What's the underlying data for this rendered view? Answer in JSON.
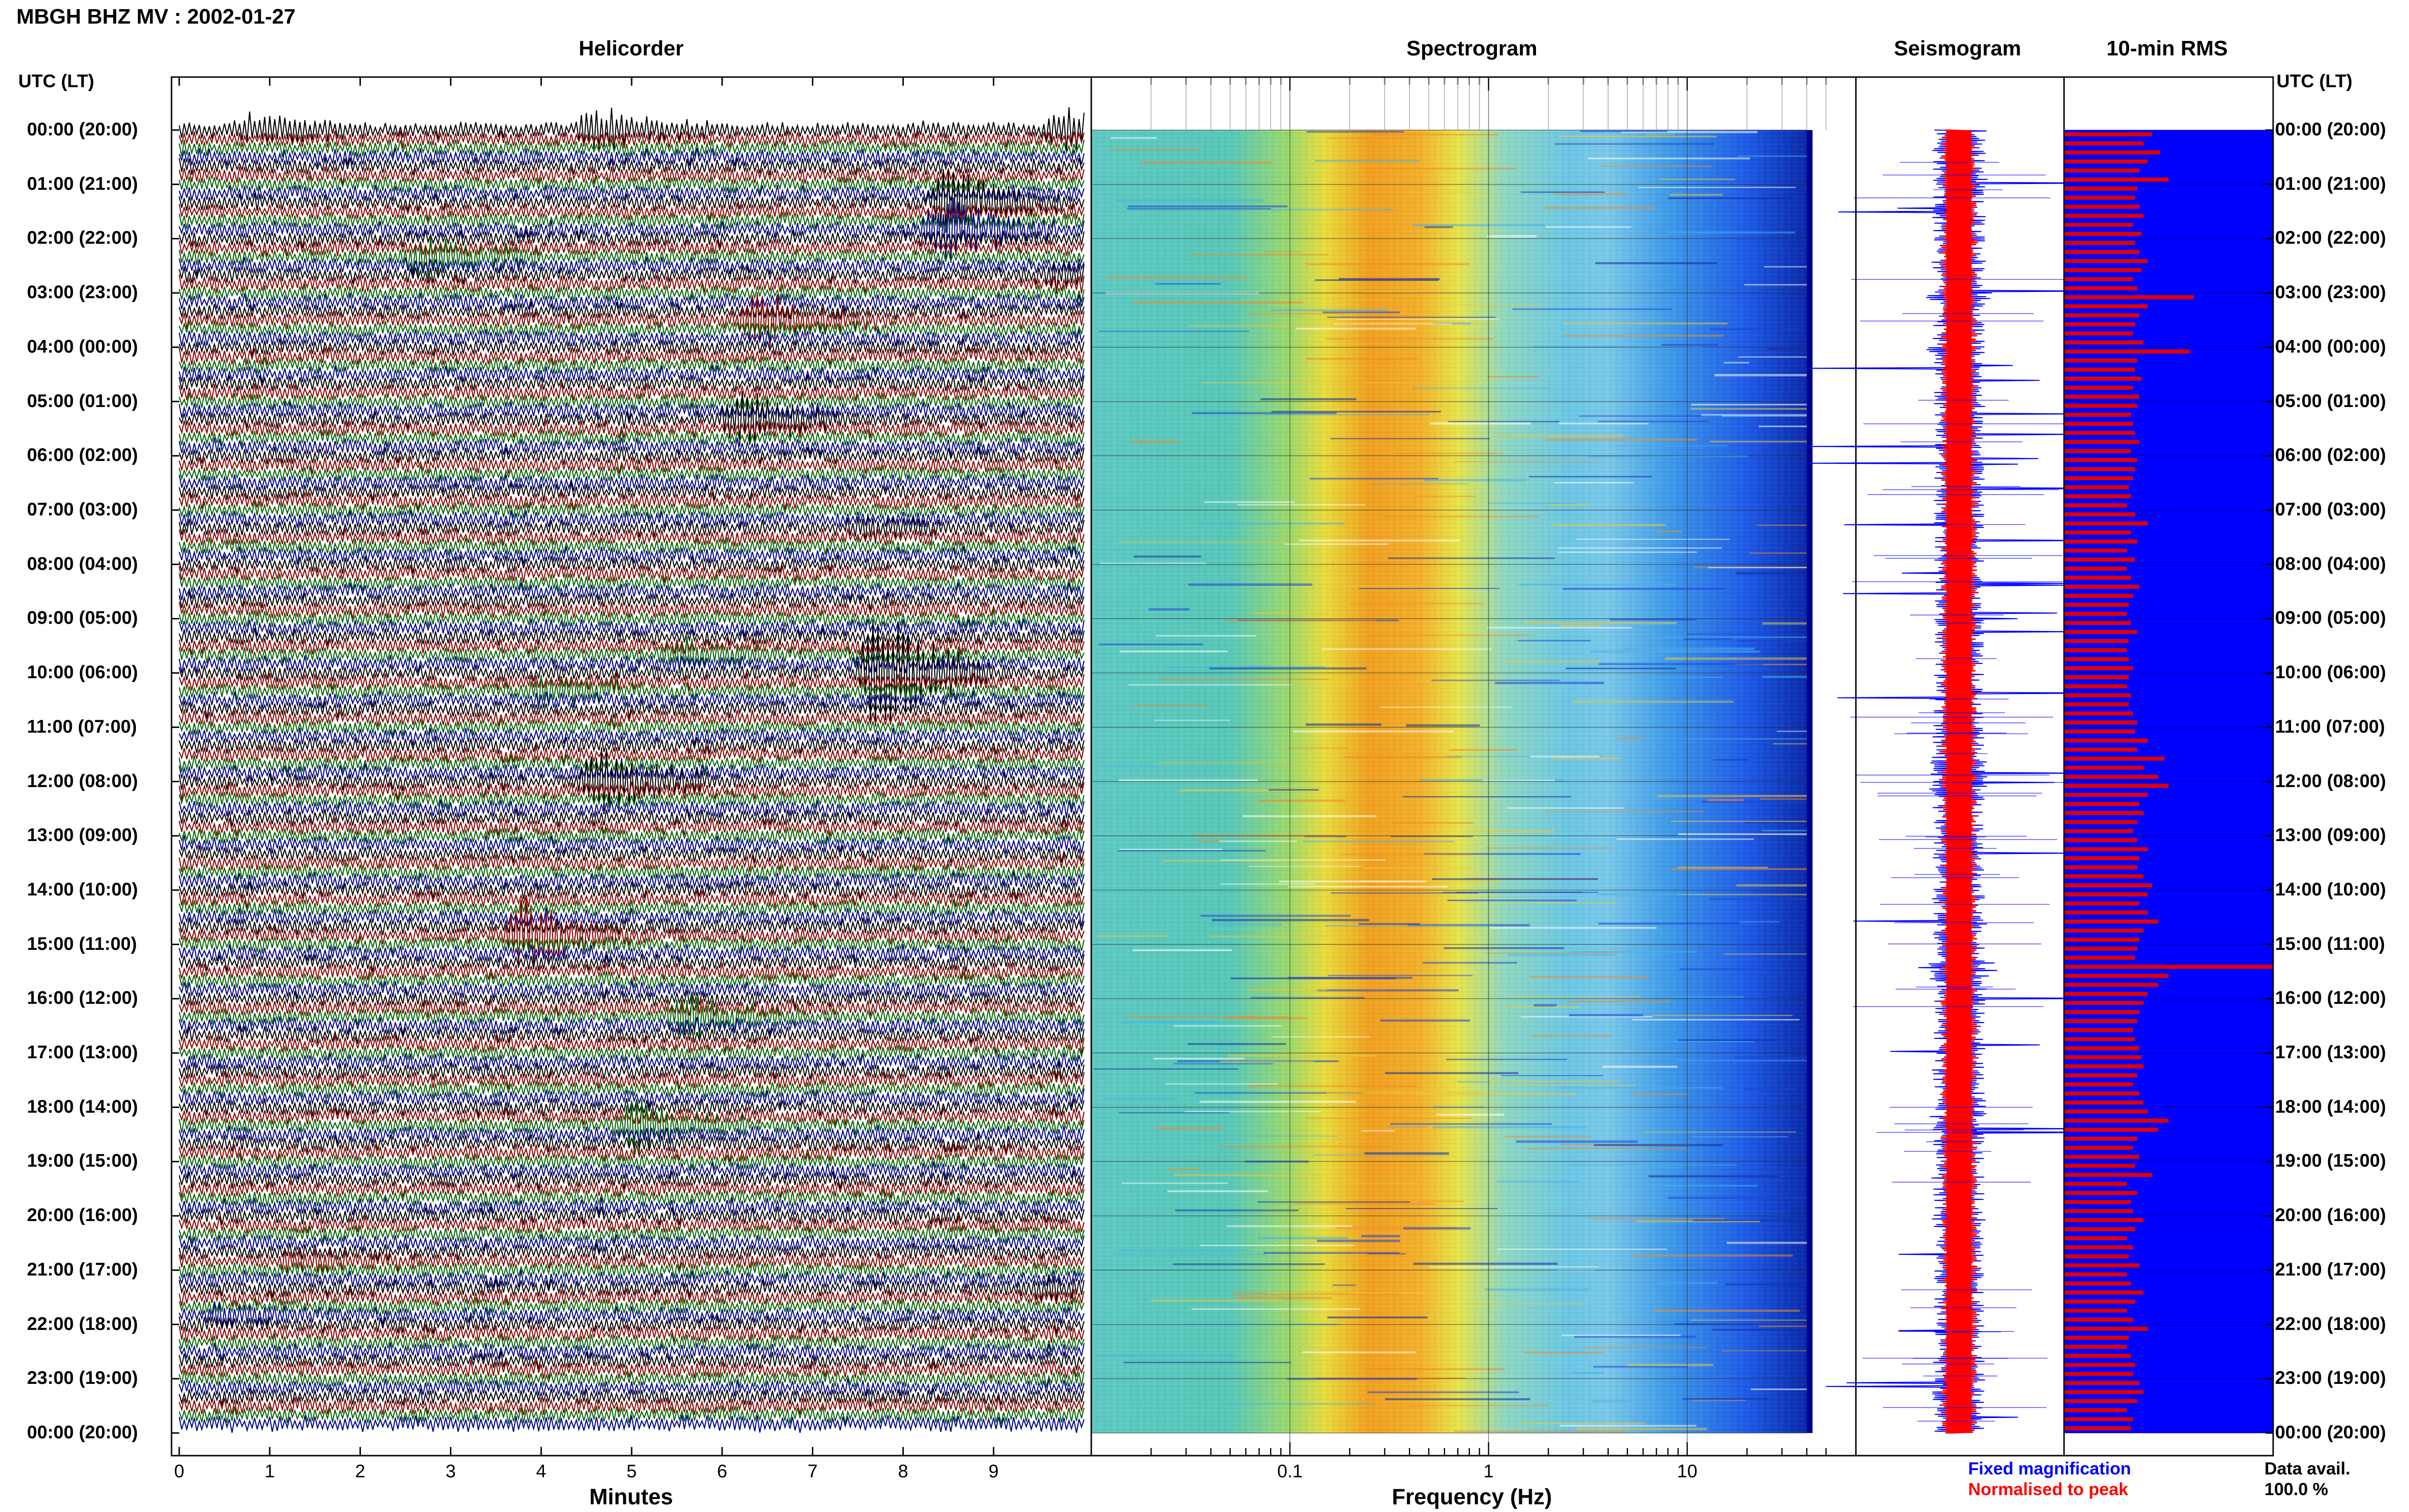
{
  "title": "MBGH BHZ MV : 2002-01-27",
  "panels": {
    "helicorder": "Helicorder",
    "spectrogram": "Spectrogram",
    "seismogram": "Seismogram",
    "rms": "10-min RMS"
  },
  "utc_header_left": "UTC (LT)",
  "utc_header_right": "UTC (LT)",
  "time_labels": [
    "00:00 (20:00)",
    "01:00 (21:00)",
    "02:00 (22:00)",
    "03:00 (23:00)",
    "04:00 (00:00)",
    "05:00 (01:00)",
    "06:00 (02:00)",
    "07:00 (03:00)",
    "08:00 (04:00)",
    "09:00 (05:00)",
    "10:00 (06:00)",
    "11:00 (07:00)",
    "12:00 (08:00)",
    "13:00 (09:00)",
    "14:00 (10:00)",
    "15:00 (11:00)",
    "16:00 (12:00)",
    "17:00 (13:00)",
    "18:00 (14:00)",
    "19:00 (15:00)",
    "20:00 (16:00)",
    "21:00 (17:00)",
    "22:00 (18:00)",
    "23:00 (19:00)",
    "00:00 (20:00)"
  ],
  "legend": {
    "fixed": "Fixed magnification",
    "normalised": "Normalised to peak",
    "avail_label": "Data avail.",
    "avail_value": "100.0 %"
  },
  "colors": {
    "trace_cycle": [
      "#000000",
      "#8b0000",
      "#006400",
      "#00008b"
    ],
    "fixed_magnification": "#0000ff",
    "normalised_to_peak": "#ff0000",
    "rms_background": "#0000ff",
    "rms_bar": "#e00000"
  },
  "chart_data": [
    {
      "type": "line",
      "panel": "helicorder",
      "xlabel": "Minutes",
      "x_ticks": [
        "0",
        "1",
        "2",
        "3",
        "4",
        "5",
        "6",
        "7",
        "8",
        "9"
      ],
      "xlim": [
        0,
        10
      ],
      "rows": 144,
      "row_minutes": 10,
      "events": [
        {
          "hour": 0.0,
          "minute": 0.8,
          "amp": 0.4
        },
        {
          "hour": 0.0,
          "minute": 4.6,
          "amp": 0.6
        },
        {
          "hour": 0.0,
          "minute": 9.8,
          "amp": 0.6
        },
        {
          "hour": 1.3,
          "minute": 8.5,
          "amp": 1.5
        },
        {
          "hour": 1.8,
          "minute": 8.4,
          "amp": 1.6
        },
        {
          "hour": 2.3,
          "minute": 2.7,
          "amp": 0.8
        },
        {
          "hour": 2.6,
          "minute": 9.7,
          "amp": 1.2
        },
        {
          "hour": 3.5,
          "minute": 6.4,
          "amp": 0.8
        },
        {
          "hour": 5.3,
          "minute": 6.2,
          "amp": 1.2
        },
        {
          "hour": 7.4,
          "minute": 7.6,
          "amp": 1.0
        },
        {
          "hour": 9.6,
          "minute": 5.5,
          "amp": 1.5
        },
        {
          "hour": 10.0,
          "minute": 7.7,
          "amp": 2.0
        },
        {
          "hour": 10.4,
          "minute": 4.0,
          "amp": 1.3
        },
        {
          "hour": 12.0,
          "minute": 4.6,
          "amp": 1.0
        },
        {
          "hour": 14.8,
          "minute": 3.8,
          "amp": 1.6
        },
        {
          "hour": 16.4,
          "minute": 5.6,
          "amp": 2.4
        },
        {
          "hour": 18.3,
          "minute": 5.0,
          "amp": 1.3
        },
        {
          "hour": 20.9,
          "minute": 1.3,
          "amp": 1.0
        },
        {
          "hour": 21.4,
          "minute": 9.5,
          "amp": 1.0
        },
        {
          "hour": 21.9,
          "minute": 0.5,
          "amp": 0.9
        }
      ]
    },
    {
      "type": "heatmap",
      "panel": "spectrogram",
      "xlabel": "Frequency (Hz)",
      "x_scale": "log",
      "xlim": [
        0.01,
        50
      ],
      "x_ticks": [
        "0.1",
        "1",
        "10"
      ],
      "peak_band_hz": [
        0.15,
        0.6
      ],
      "secondary_band_hz": [
        2,
        5
      ],
      "upper_limit_hz": 40
    },
    {
      "type": "line",
      "panel": "seismogram",
      "series": [
        {
          "name": "Fixed magnification",
          "color": "#0000ff"
        },
        {
          "name": "Normalised to peak",
          "color": "#ff0000"
        }
      ]
    },
    {
      "type": "bar",
      "panel": "10-min RMS",
      "orientation": "horizontal",
      "bins": 144,
      "xlim": [
        0,
        1
      ],
      "values": [
        0.42,
        0.38,
        0.46,
        0.4,
        0.36,
        0.5,
        0.35,
        0.34,
        0.36,
        0.38,
        0.33,
        0.37,
        0.34,
        0.36,
        0.4,
        0.37,
        0.33,
        0.35,
        0.62,
        0.4,
        0.36,
        0.34,
        0.33,
        0.38,
        0.6,
        0.35,
        0.34,
        0.37,
        0.33,
        0.36,
        0.35,
        0.32,
        0.33,
        0.34,
        0.36,
        0.32,
        0.35,
        0.34,
        0.33,
        0.31,
        0.32,
        0.3,
        0.34,
        0.4,
        0.32,
        0.35,
        0.3,
        0.34,
        0.3,
        0.32,
        0.36,
        0.33,
        0.31,
        0.3,
        0.32,
        0.35,
        0.31,
        0.3,
        0.31,
        0.33,
        0.31,
        0.3,
        0.32,
        0.31,
        0.33,
        0.35,
        0.34,
        0.4,
        0.35,
        0.48,
        0.38,
        0.45,
        0.5,
        0.4,
        0.36,
        0.38,
        0.35,
        0.33,
        0.35,
        0.4,
        0.36,
        0.35,
        0.38,
        0.42,
        0.4,
        0.36,
        0.4,
        0.45,
        0.38,
        0.36,
        0.35,
        0.34,
        1.0,
        0.5,
        0.45,
        0.4,
        0.38,
        0.36,
        0.35,
        0.33,
        0.34,
        0.36,
        0.37,
        0.38,
        0.35,
        0.33,
        0.36,
        0.38,
        0.4,
        0.5,
        0.45,
        0.35,
        0.33,
        0.36,
        0.34,
        0.42,
        0.3,
        0.35,
        0.32,
        0.33,
        0.38,
        0.34,
        0.3,
        0.33,
        0.31,
        0.36,
        0.3,
        0.32,
        0.38,
        0.34,
        0.3,
        0.33,
        0.4,
        0.31,
        0.3,
        0.32,
        0.34,
        0.33,
        0.36,
        0.38,
        0.35,
        0.3,
        0.33,
        0.32
      ]
    }
  ]
}
